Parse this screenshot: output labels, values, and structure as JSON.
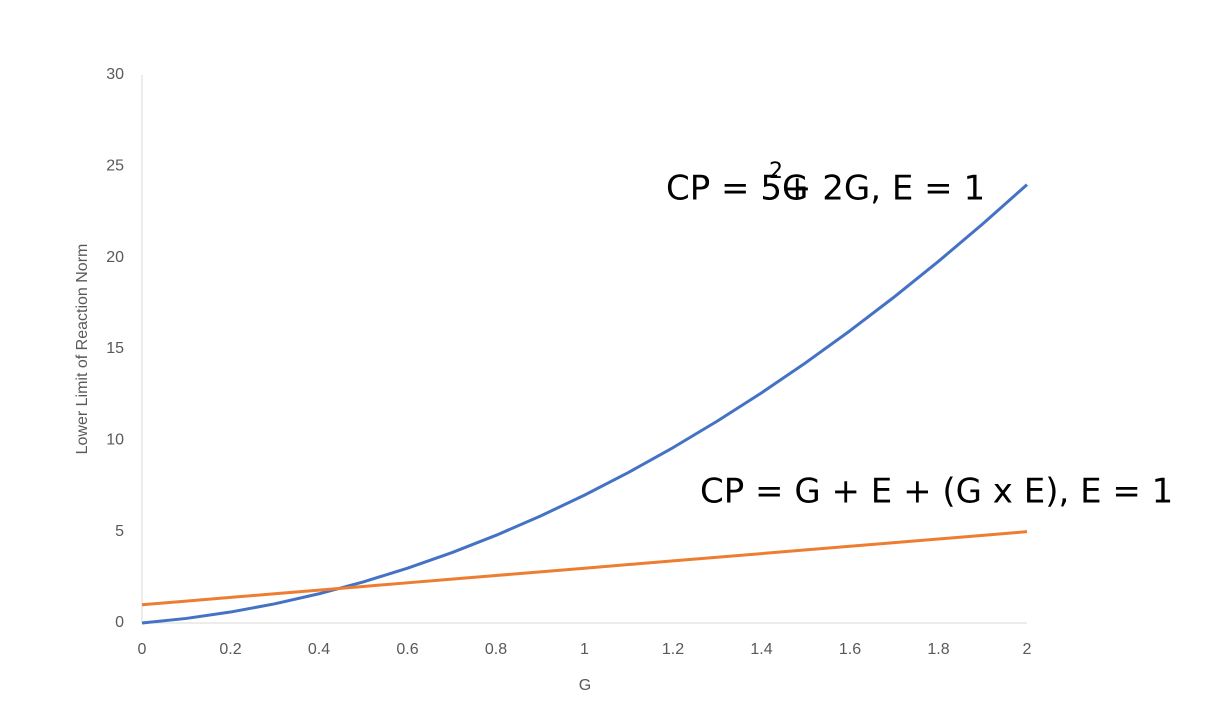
{
  "chart_data": {
    "type": "line",
    "x": [
      0,
      0.1,
      0.2,
      0.3,
      0.4,
      0.5,
      0.6,
      0.7,
      0.8,
      0.9,
      1,
      1.1,
      1.2,
      1.3,
      1.4,
      1.5,
      1.6,
      1.7,
      1.8,
      1.9,
      2
    ],
    "series": [
      {
        "color": "#4472c4",
        "values": [
          0,
          0.25,
          0.6,
          1.05,
          1.6,
          2.25,
          3,
          3.85,
          4.8,
          5.85,
          7,
          8.25,
          9.6,
          11.05,
          12.6,
          14.25,
          16,
          17.85,
          19.8,
          21.85,
          24
        ]
      },
      {
        "color": "#ed7d31",
        "values": [
          1,
          1.2,
          1.4,
          1.6,
          1.8,
          2,
          2.2,
          2.4,
          2.6,
          2.8,
          3,
          3.2,
          3.4,
          3.6,
          3.8,
          4,
          4.2,
          4.4,
          4.6,
          4.8,
          5
        ]
      }
    ],
    "x_label": "G",
    "y_label": "Lower Limit of Reaction Norm",
    "xlim": [
      0,
      2
    ],
    "xticks": [
      0,
      0.2,
      0.4,
      0.6,
      0.8,
      1,
      1.2,
      1.4,
      1.6,
      1.8,
      2
    ],
    "ylim": [
      0,
      30
    ],
    "yticks": [
      0,
      5,
      10,
      15,
      20,
      25,
      30
    ],
    "grid": false,
    "annotations": [
      {
        "parts": [
          "CP = 5G",
          "2",
          "+ 2G, E = 1"
        ]
      },
      {
        "text": "CP = G + E + (G x E), E = 1"
      }
    ]
  }
}
